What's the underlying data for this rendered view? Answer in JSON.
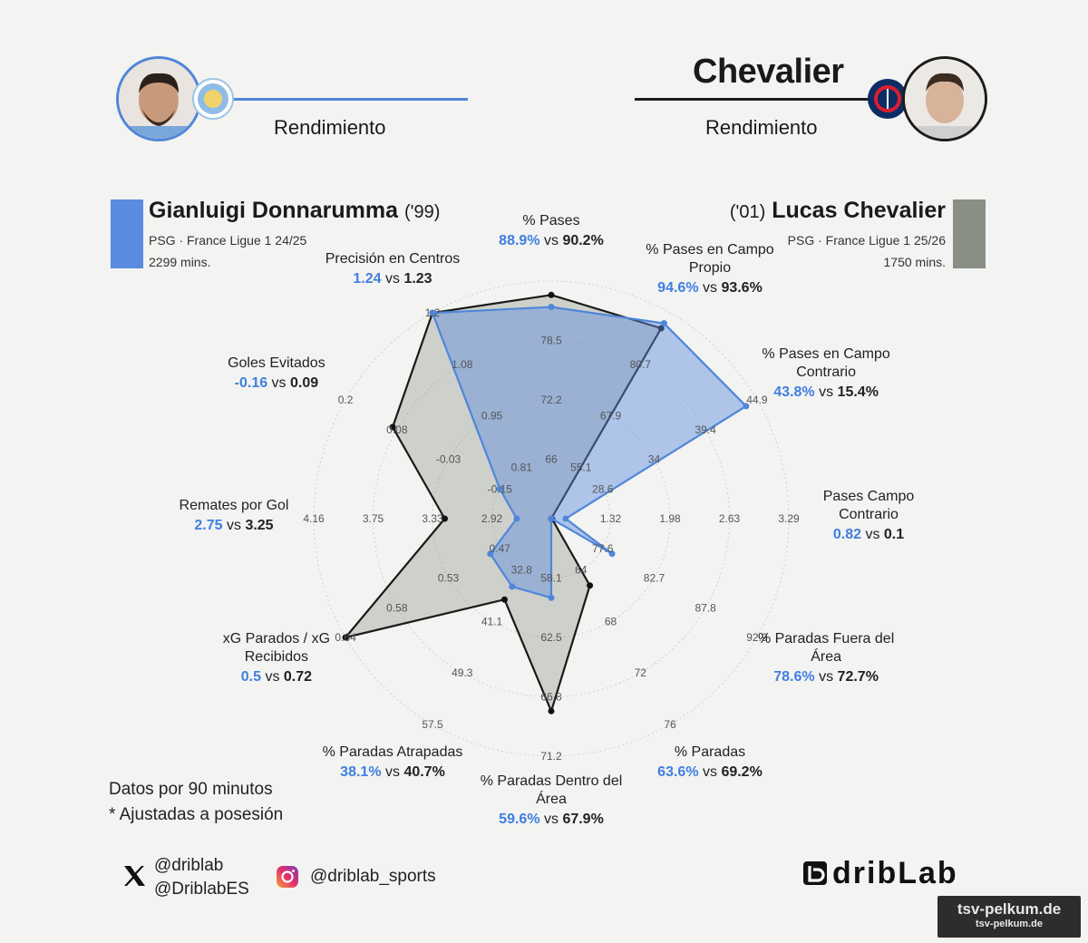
{
  "header": {
    "left": {
      "title": "",
      "subtitle": "Rendimiento",
      "player_photo_icon": "player-photo",
      "club_crest_icon": "manchester-city-crest"
    },
    "right": {
      "title": "Chevalier",
      "subtitle": "Rendimiento",
      "player_photo_icon": "player-photo",
      "club_crest_icon": "psg-crest"
    }
  },
  "players": [
    {
      "name": "Gianluigi Donnarumma",
      "year": "('99)",
      "line1": "PSG · France Ligue 1 24/25",
      "line2": "2299 mins.",
      "color": "#5b8be0"
    },
    {
      "name": "Lucas Chevalier",
      "year": "('01)",
      "line1": "PSG · France Ligue 1 25/26",
      "line2": "1750 mins.",
      "color": "#8a8f85"
    }
  ],
  "chart_data": {
    "type": "radar",
    "axes": [
      {
        "label": [
          "% Pases"
        ],
        "v1": "88.9%",
        "v2": "90.2%",
        "a": 88.9,
        "b": 90.2,
        "min": 66,
        "max": 91.7,
        "ticks": [
          "66",
          "72.2",
          "78.5",
          ""
        ]
      },
      {
        "label": [
          "% Pases en Campo",
          "Propio"
        ],
        "v1": "94.6%",
        "v2": "93.6%",
        "a": 94.6,
        "b": 93.6,
        "min": 55.1,
        "max": 96.7,
        "ticks": [
          "55.1",
          "67.9",
          "80.7",
          ""
        ]
      },
      {
        "label": [
          "% Pases en Campo",
          "Contrario"
        ],
        "v1": "43.8%",
        "v2": "15.4%",
        "a": 43.8,
        "b": 15.4,
        "min": 24.1,
        "max": 44.9,
        "ticks": [
          "28.6",
          "34",
          "39.4",
          "44.9"
        ]
      },
      {
        "label": [
          "Pases Campo",
          "Contrario"
        ],
        "v1": "0.82",
        "v2": "0.1",
        "a": 0.82,
        "b": 0.1,
        "min": 0.66,
        "max": 3.29,
        "ticks": [
          "1.32",
          "1.98",
          "2.63",
          "3.29"
        ]
      },
      {
        "label": [
          "% Paradas Fuera del",
          "Área"
        ],
        "v1": "78.6%",
        "v2": "72.7%",
        "a": 78.6,
        "b": 72.7,
        "min": 72.6,
        "max": 92.9,
        "ticks": [
          "77.6",
          "82.7",
          "87.8",
          "92.9"
        ]
      },
      {
        "label": [
          "% Paradas"
        ],
        "v1": "63.6%",
        "v2": "69.2%",
        "a": 63.6,
        "b": 69.2,
        "min": 64,
        "max": 80,
        "ticks": [
          "64",
          "68",
          "72",
          "76"
        ]
      },
      {
        "label": [
          "% Paradas Dentro del",
          "Área"
        ],
        "v1": "59.6%",
        "v2": "67.9%",
        "a": 59.6,
        "b": 67.9,
        "min": 53.8,
        "max": 71.2,
        "ticks": [
          "58.1",
          "62.5",
          "66.8",
          "71.2"
        ]
      },
      {
        "label": [
          "% Paradas Atrapadas"
        ],
        "v1": "38.1%",
        "v2": "40.7%",
        "a": 38.1,
        "b": 40.7,
        "min": 24.5,
        "max": 65.7,
        "ticks": [
          "32.8",
          "41.1",
          "49.3",
          "57.5"
        ]
      },
      {
        "label": [
          "xG Parados / xG",
          "Recibidos"
        ],
        "v1": "0.5",
        "v2": "0.72",
        "a": 0.5,
        "b": 0.72,
        "min": 0.42,
        "max": 0.69,
        "ticks": [
          "0.47",
          "0.53",
          "0.58",
          "0.64"
        ]
      },
      {
        "label": [
          "Remates por Gol"
        ],
        "v1": "2.75",
        "v2": "3.25",
        "a": 2.75,
        "b": 3.25,
        "min": 2.51,
        "max": 4.16,
        "ticks": [
          "2.92",
          "3.33",
          "3.75",
          "4.16"
        ]
      },
      {
        "label": [
          "Goles Evitados"
        ],
        "v1": "-0.16",
        "v2": "0.09",
        "a": -0.16,
        "b": 0.09,
        "min": -0.28,
        "max": 0.2,
        "ticks": [
          "-0.15",
          "-0.03",
          "0.08",
          "0.2"
        ]
      },
      {
        "label": [
          "Precisión en Centros"
        ],
        "v1": "1.24",
        "v2": "1.23",
        "a": 1.24,
        "b": 1.23,
        "min": 0.68,
        "max": 1.2,
        "ticks": [
          "0.81",
          "0.95",
          "1.08",
          "1.2"
        ]
      }
    ],
    "vs": "vs"
  },
  "notes": {
    "line1": "Datos por 90 minutos",
    "line2": "* Ajustadas a posesión"
  },
  "social": {
    "x1": "@driblab",
    "x2": "@DriblabES",
    "instagram": "@driblab_sports",
    "x_icon": "x-logo-icon",
    "instagram_icon": "instagram-logo-icon"
  },
  "brand": {
    "logo_text": "dribLab"
  },
  "watermark": {
    "line1": "tsv-pelkum.de",
    "line2": "tsv-pelkum.de"
  }
}
